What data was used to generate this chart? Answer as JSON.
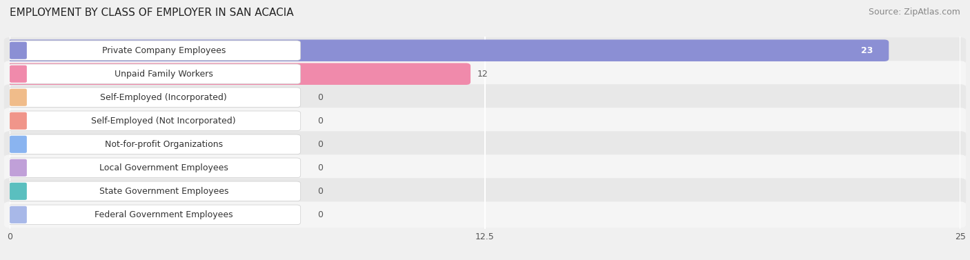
{
  "title": "EMPLOYMENT BY CLASS OF EMPLOYER IN SAN ACACIA",
  "source": "Source: ZipAtlas.com",
  "categories": [
    "Private Company Employees",
    "Unpaid Family Workers",
    "Self-Employed (Incorporated)",
    "Self-Employed (Not Incorporated)",
    "Not-for-profit Organizations",
    "Local Government Employees",
    "State Government Employees",
    "Federal Government Employees"
  ],
  "values": [
    23,
    12,
    0,
    0,
    0,
    0,
    0,
    0
  ],
  "bar_colors": [
    "#8b8fd4",
    "#f08aab",
    "#f0bc8a",
    "#f0958a",
    "#8ab4f0",
    "#c0a0d8",
    "#5abfbf",
    "#a8b8e8"
  ],
  "label_bg_colors": [
    "#ffffff",
    "#ffffff",
    "#ffffff",
    "#ffffff",
    "#ffffff",
    "#ffffff",
    "#ffffff",
    "#ffffff"
  ],
  "label_accent_colors": [
    "#8b8fd4",
    "#f08aab",
    "#f0bc8a",
    "#f0958a",
    "#8ab4f0",
    "#c0a0d8",
    "#5abfbf",
    "#a8b8e8"
  ],
  "xlim": [
    0,
    25
  ],
  "xticks": [
    0,
    12.5,
    25
  ],
  "background_color": "#f0f0f0",
  "row_colors": [
    "#e8e8e8",
    "#f5f5f5"
  ],
  "title_fontsize": 11,
  "source_fontsize": 9,
  "bar_label_fontsize": 9,
  "value_label_fontsize": 9,
  "grid_color": "#ffffff"
}
